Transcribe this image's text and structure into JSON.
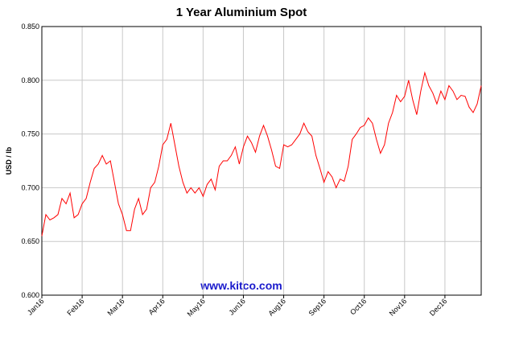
{
  "chart_data": {
    "type": "line",
    "title": "1 Year Aluminium Spot",
    "y_label": "USD / lb",
    "watermark": "www.kitco.com",
    "series": [
      {
        "name": "Aluminium Spot",
        "color": "#ff0000",
        "values": [
          0.655,
          0.675,
          0.67,
          0.672,
          0.675,
          0.69,
          0.685,
          0.695,
          0.672,
          0.675,
          0.685,
          0.69,
          0.705,
          0.718,
          0.722,
          0.73,
          0.722,
          0.725,
          0.705,
          0.685,
          0.675,
          0.66,
          0.66,
          0.68,
          0.69,
          0.675,
          0.68,
          0.7,
          0.705,
          0.72,
          0.74,
          0.745,
          0.76,
          0.74,
          0.72,
          0.705,
          0.695,
          0.7,
          0.695,
          0.7,
          0.692,
          0.703,
          0.708,
          0.698,
          0.72,
          0.725,
          0.725,
          0.73,
          0.738,
          0.722,
          0.738,
          0.748,
          0.742,
          0.733,
          0.748,
          0.758,
          0.748,
          0.735,
          0.72,
          0.718,
          0.74,
          0.738,
          0.74,
          0.745,
          0.75,
          0.76,
          0.752,
          0.748,
          0.73,
          0.718,
          0.705,
          0.715,
          0.71,
          0.7,
          0.708,
          0.706,
          0.72,
          0.745,
          0.75,
          0.756,
          0.758,
          0.765,
          0.76,
          0.745,
          0.732,
          0.74,
          0.76,
          0.77,
          0.786,
          0.78,
          0.785,
          0.8,
          0.782,
          0.768,
          0.79,
          0.807,
          0.795,
          0.788,
          0.778,
          0.79,
          0.782,
          0.795,
          0.79,
          0.782,
          0.786,
          0.785,
          0.775,
          0.77,
          0.778,
          0.795
        ]
      }
    ],
    "xlim": [
      0,
      109
    ],
    "xticks": [
      {
        "value": 0,
        "label": "Jan16"
      },
      {
        "value": 10,
        "label": "Feb16"
      },
      {
        "value": 20,
        "label": "Mar16"
      },
      {
        "value": 30,
        "label": "Apr16"
      },
      {
        "value": 40,
        "label": "May16"
      },
      {
        "value": 50,
        "label": "Jun16"
      },
      {
        "value": 60,
        "label": "Aug16"
      },
      {
        "value": 70,
        "label": "Sep16"
      },
      {
        "value": 80,
        "label": "Oct16"
      },
      {
        "value": 90,
        "label": "Nov16"
      },
      {
        "value": 100,
        "label": "Dec16"
      }
    ],
    "ylim": [
      0.6,
      0.85
    ],
    "yticks": [
      {
        "value": 0.6,
        "label": "0.600"
      },
      {
        "value": 0.65,
        "label": "0.650"
      },
      {
        "value": 0.7,
        "label": "0.700"
      },
      {
        "value": 0.75,
        "label": "0.750"
      },
      {
        "value": 0.8,
        "label": "0.800"
      },
      {
        "value": 0.85,
        "label": "0.850"
      }
    ],
    "grid": true
  }
}
